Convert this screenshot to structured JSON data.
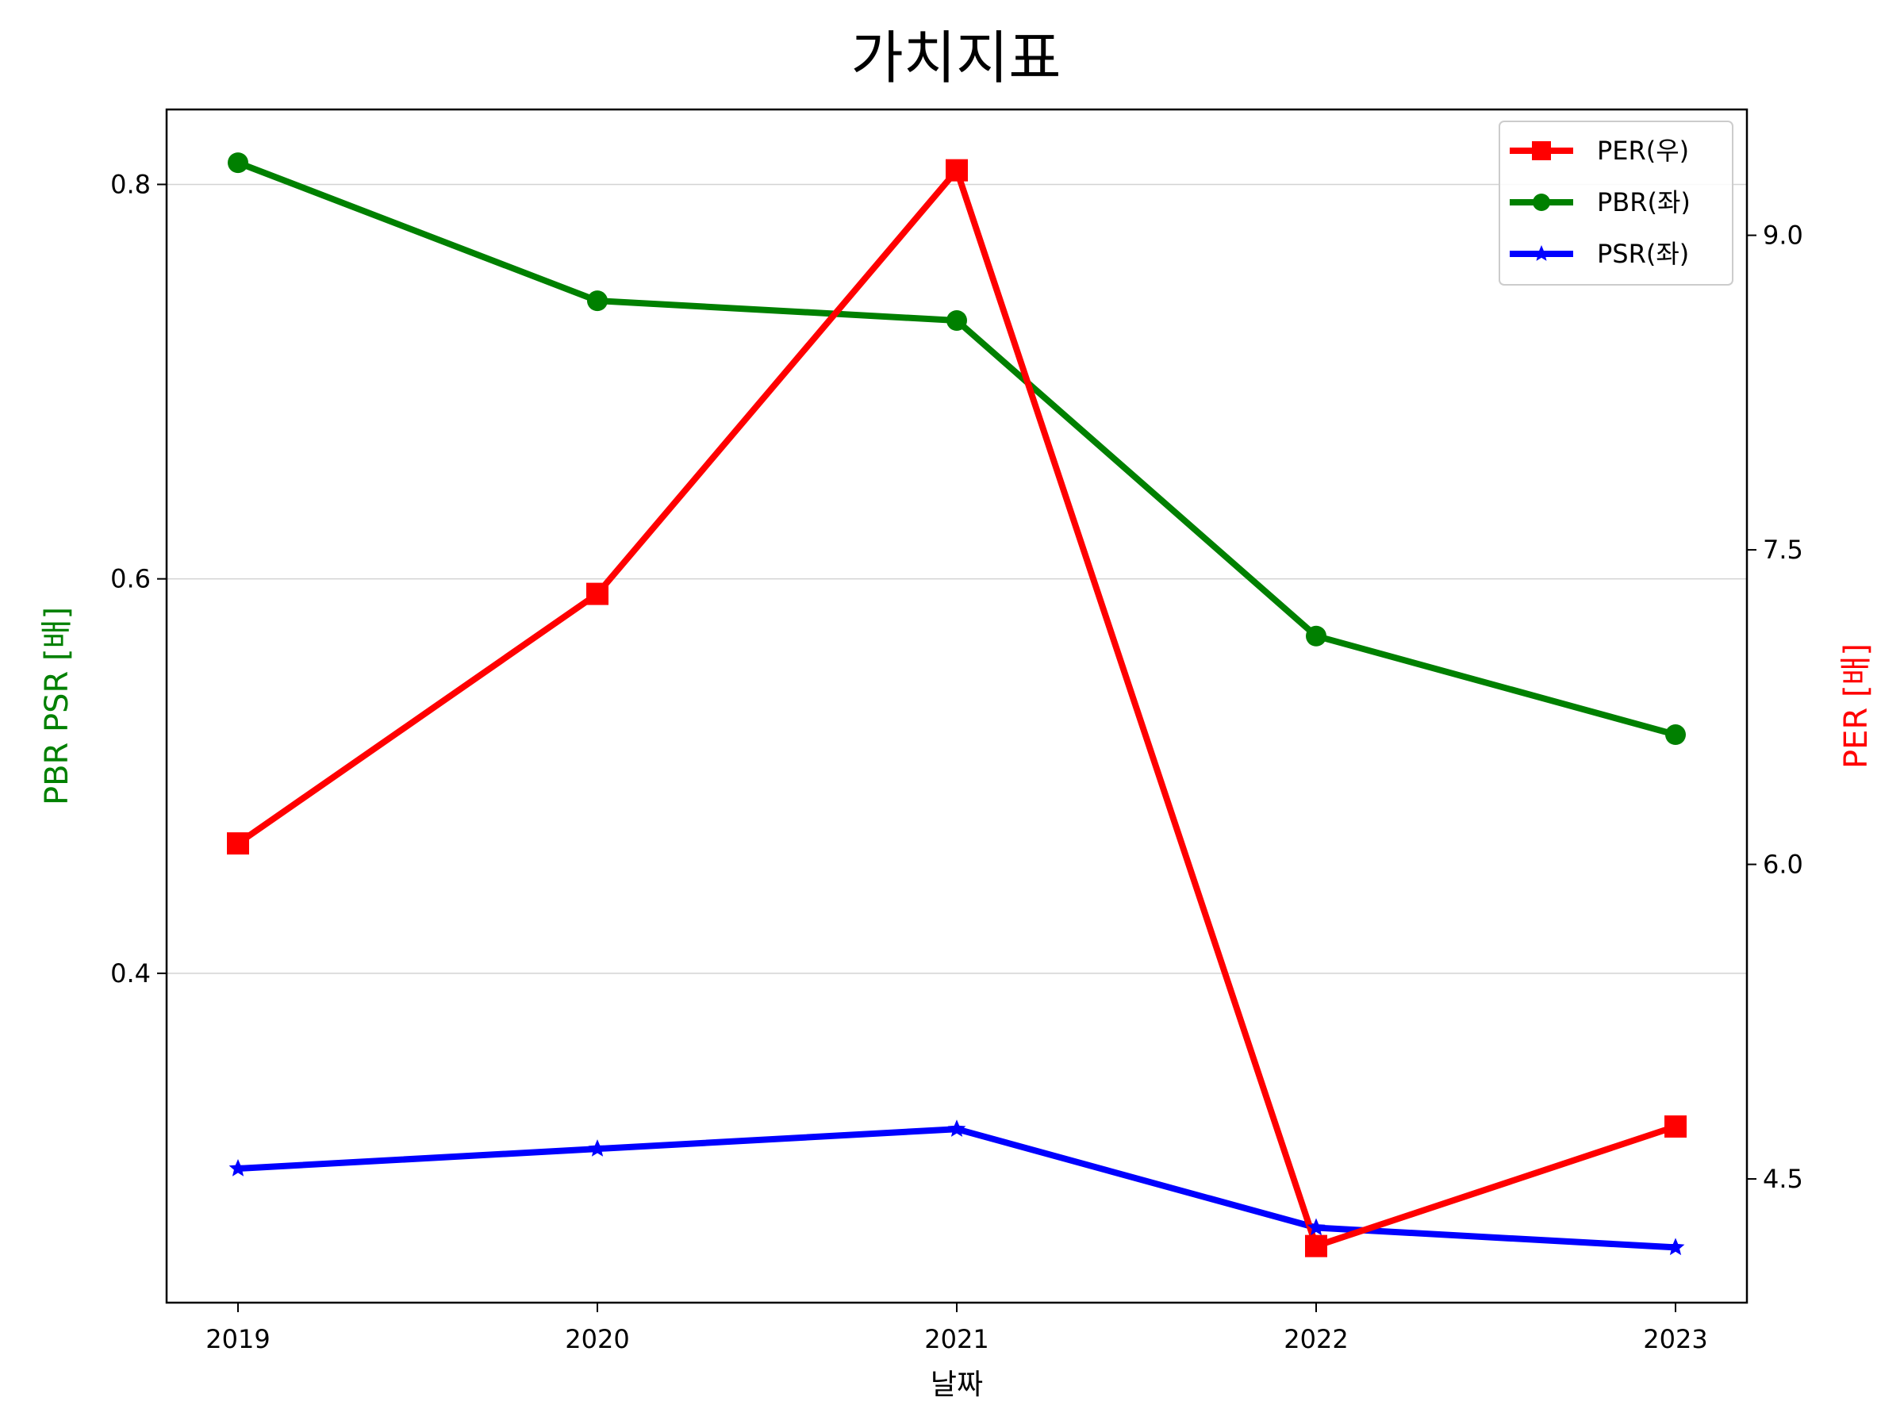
{
  "chart_data": {
    "type": "line",
    "title": "가치지표",
    "xlabel": "날짜",
    "ylabel_left": "PBR PSR [배]",
    "ylabel_right": "PER [배]",
    "categories": [
      "2019",
      "2020",
      "2021",
      "2022",
      "2023"
    ],
    "left_axis": {
      "ylim": [
        0.233,
        0.838
      ],
      "ticks": [
        0.4,
        0.6,
        0.8
      ],
      "tick_labels": [
        "0.4",
        "0.6",
        "0.8"
      ]
    },
    "right_axis": {
      "ylim": [
        3.91,
        9.6
      ],
      "ticks": [
        4.5,
        6.0,
        7.5,
        9.0
      ],
      "tick_labels": [
        "4.5",
        "6.0",
        "7.5",
        "9.0"
      ]
    },
    "grid": true,
    "legend_position": "top-right",
    "series": [
      {
        "name": "PER(우)",
        "axis": "right",
        "marker": "square",
        "color": "#ff0000",
        "values": [
          6.1,
          7.29,
          9.31,
          4.18,
          4.75
        ]
      },
      {
        "name": "PBR(좌)",
        "axis": "left",
        "marker": "circle",
        "color": "#008000",
        "values": [
          0.811,
          0.741,
          0.731,
          0.571,
          0.521
        ]
      },
      {
        "name": "PSR(좌)",
        "axis": "left",
        "marker": "star",
        "color": "#0000ff",
        "values": [
          0.301,
          0.311,
          0.321,
          0.271,
          0.261
        ]
      }
    ]
  }
}
